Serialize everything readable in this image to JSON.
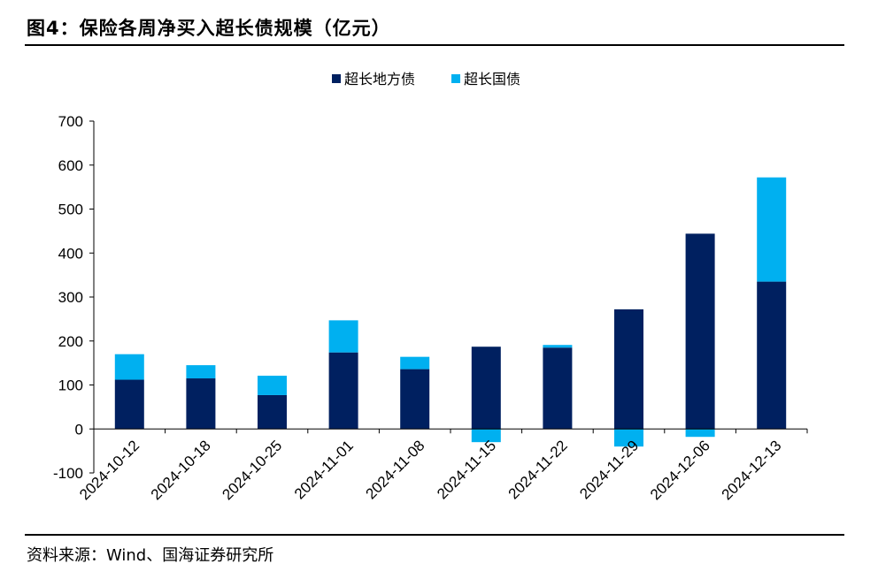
{
  "title": "图4：保险各周净买入超长债规模（亿元）",
  "source": "资料来源：Wind、国海证券研究所",
  "colors": {
    "series1": "#002060",
    "series2": "#00b0f0"
  },
  "chart_data": {
    "type": "bar",
    "stacked": true,
    "categories": [
      "2024-10-12",
      "2024-10-18",
      "2024-10-25",
      "2024-11-01",
      "2024-11-08",
      "2024-11-15",
      "2024-11-22",
      "2024-11-29",
      "2024-12-06",
      "2024-12-13"
    ],
    "series": [
      {
        "name": "超长地方债",
        "values": [
          112,
          115,
          77,
          174,
          136,
          187,
          185,
          272,
          444,
          335
        ]
      },
      {
        "name": "超长国债",
        "values": [
          58,
          30,
          44,
          73,
          28,
          -30,
          6,
          -40,
          -18,
          237
        ]
      }
    ],
    "ylim": [
      -100,
      700
    ],
    "yticks": [
      -100,
      0,
      100,
      200,
      300,
      400,
      500,
      600,
      700
    ],
    "legend_position": "top-center",
    "grid": false
  }
}
